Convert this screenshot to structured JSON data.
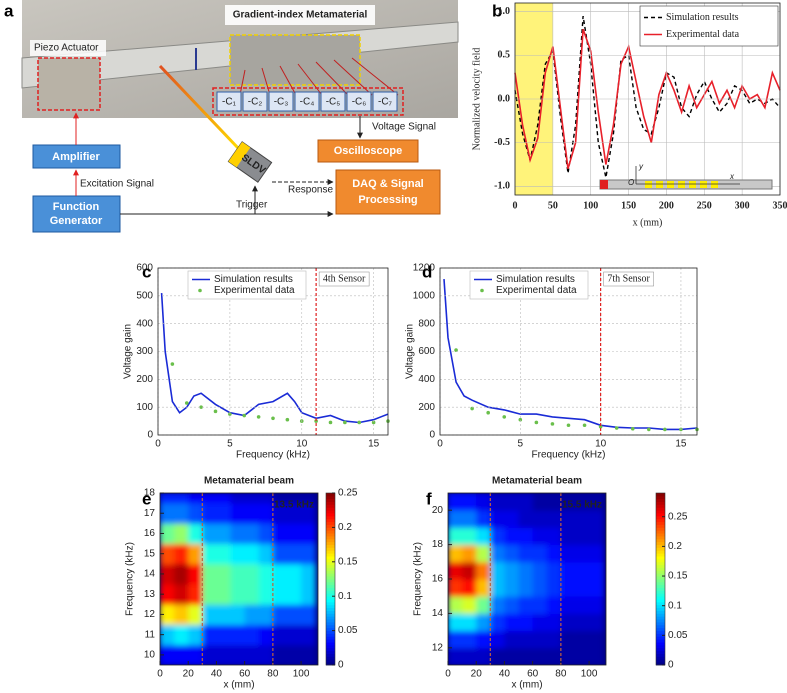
{
  "diagram": {
    "panel": "a",
    "title": "Gradient-index Metamaterial",
    "actuator_label": "Piezo Actuator",
    "sensors": [
      "-C₁",
      "-C₂",
      "-C₃",
      "-C₄",
      "-C₅",
      "-C₆",
      "-C₇"
    ],
    "voltage_signal": "Voltage Signal",
    "oscilloscope": "Oscilloscope",
    "amplifier": "Amplifier",
    "excitation_signal": "Excitation Signal",
    "function_generator": [
      "Function",
      "Generator"
    ],
    "sldv": "SLDV",
    "trigger": "Trigger",
    "response": "Response",
    "daq": [
      "DAQ & Signal",
      "Processing"
    ]
  },
  "chart_data": [
    {
      "panel": "b",
      "type": "line",
      "xlabel": "x (mm)",
      "ylabel": "Normalized velocity field",
      "x": [
        0,
        10,
        20,
        30,
        40,
        50,
        60,
        70,
        80,
        90,
        100,
        110,
        120,
        130,
        140,
        150,
        160,
        170,
        180,
        190,
        200,
        210,
        220,
        230,
        240,
        250,
        260,
        270,
        280,
        290,
        300,
        310,
        320,
        330,
        340,
        350
      ],
      "series": [
        {
          "name": "Simulation results",
          "color": "#000000",
          "dash": true,
          "mode": "line",
          "values": [
            0.1,
            -0.4,
            -0.7,
            -0.3,
            0.4,
            0.55,
            -0.2,
            -0.85,
            -0.3,
            0.95,
            0.4,
            -0.5,
            -0.9,
            -0.4,
            0.45,
            0.5,
            -0.1,
            -0.35,
            -0.4,
            -0.1,
            0.3,
            0.25,
            -0.1,
            -0.2,
            0.05,
            0.2,
            0,
            -0.15,
            -0.05,
            0.15,
            0.1,
            -0.05,
            0,
            -0.05,
            0,
            -0.1
          ]
        },
        {
          "name": "Experimental data",
          "color": "#e8202a",
          "mode": "line",
          "values": [
            0.3,
            -0.3,
            -0.7,
            -0.45,
            0.3,
            0.6,
            -0.1,
            -0.8,
            -0.5,
            0.8,
            0.55,
            -0.15,
            -0.75,
            -0.3,
            0.4,
            0.6,
            0.2,
            -0.2,
            -0.5,
            0.05,
            0.3,
            0.1,
            -0.15,
            0.15,
            -0.1,
            0.05,
            0.2,
            -0.05,
            0.1,
            -0.1,
            0.15,
            0,
            0.05,
            -0.1,
            0.3,
            0.1
          ]
        }
      ],
      "xlim": [
        0,
        350
      ],
      "xticks": [
        0,
        50,
        100,
        150,
        200,
        250,
        300,
        350
      ],
      "ylim": [
        -1.1,
        1.1
      ],
      "yticks": [
        {
          "value": -1,
          "label": "-1.0"
        },
        -0.5,
        {
          "value": 0,
          "label": "0.0"
        },
        0.5,
        {
          "value": 1,
          "label": "1.0"
        }
      ],
      "grid": true,
      "legend": "upper right",
      "shade_x": [
        0,
        50
      ],
      "shade_color": "#fff37a",
      "inset_labels": [
        "y",
        "O",
        "x"
      ]
    },
    {
      "panel": "c",
      "type": "line",
      "xlabel": "Frequency (kHz)",
      "ylabel": "Voltage gain",
      "series": [
        {
          "name": "Simulation results",
          "color": "#1a2bd6",
          "mode": "line",
          "x": [
            0.25,
            0.5,
            1,
            1.5,
            2,
            2.5,
            3,
            4,
            5,
            6,
            7,
            8,
            9,
            9.5,
            10,
            11,
            12,
            13,
            14,
            15,
            16
          ],
          "values": [
            510,
            300,
            120,
            80,
            100,
            140,
            150,
            110,
            80,
            70,
            110,
            120,
            150,
            120,
            80,
            60,
            70,
            50,
            45,
            55,
            75
          ]
        },
        {
          "name": "Experimental data",
          "color": "#6abf4b",
          "mode": "markers",
          "x": [
            1,
            2,
            3,
            4,
            5,
            6,
            7,
            8,
            9,
            10,
            11,
            12,
            13,
            14,
            15,
            16
          ],
          "values": [
            255,
            115,
            100,
            85,
            75,
            70,
            65,
            60,
            55,
            50,
            50,
            45,
            45,
            45,
            45,
            50
          ]
        }
      ],
      "xlim": [
        0,
        16
      ],
      "xticks": [
        0,
        5,
        10,
        15
      ],
      "ylim": [
        0,
        600
      ],
      "yticks": [
        0,
        100,
        200,
        300,
        400,
        500,
        600
      ],
      "grid": true,
      "legend": "upper left",
      "vlines": [
        {
          "x": 11,
          "label": "4th Sensor",
          "color": "#e02020"
        }
      ]
    },
    {
      "panel": "d",
      "type": "line",
      "xlabel": "Frequency (kHz)",
      "ylabel": "Voltage gain",
      "series": [
        {
          "name": "Simulation results",
          "color": "#1a2bd6",
          "mode": "line",
          "x": [
            0.25,
            0.5,
            1,
            1.5,
            2,
            3,
            4,
            5,
            6,
            7,
            8,
            9,
            10,
            11,
            12,
            13,
            14,
            15,
            16
          ],
          "values": [
            1120,
            700,
            380,
            280,
            250,
            200,
            180,
            150,
            150,
            130,
            120,
            110,
            70,
            55,
            50,
            50,
            40,
            40,
            50
          ]
        },
        {
          "name": "Experimental data",
          "color": "#6abf4b",
          "mode": "markers",
          "x": [
            1,
            2,
            3,
            4,
            5,
            6,
            7,
            8,
            9,
            10,
            11,
            12,
            13,
            14,
            15,
            16
          ],
          "values": [
            610,
            190,
            160,
            130,
            110,
            90,
            80,
            70,
            70,
            60,
            50,
            45,
            40,
            40,
            40,
            40
          ]
        }
      ],
      "xlim": [
        0,
        16
      ],
      "xticks": [
        0,
        5,
        10,
        15
      ],
      "ylim": [
        0,
        1200
      ],
      "yticks": [
        0,
        200,
        400,
        600,
        800,
        1000,
        1200
      ],
      "grid": true,
      "legend": "upper left",
      "vlines": [
        {
          "x": 10,
          "label": "7th Sensor",
          "color": "#e02020"
        }
      ]
    },
    {
      "panel": "e",
      "type": "heatmap",
      "title": "Metamaterial beam",
      "annotation": "13.5 kHz",
      "xlabel": "x (mm)",
      "ylabel": "Frequency (kHz)",
      "colormap": "jet",
      "x_bins": [
        0,
        10,
        20,
        30,
        40,
        50,
        60,
        70,
        80,
        90,
        100,
        110
      ],
      "y_bins": [
        9.5,
        10.5,
        11.5,
        12.5,
        13.5,
        14.5,
        15.5,
        16.5,
        17.5,
        18
      ],
      "z": [
        [
          0.03,
          0.03,
          0.03,
          0.02,
          0.02,
          0.02,
          0.02,
          0.02,
          0.01,
          0.01,
          0.01
        ],
        [
          0.08,
          0.09,
          0.08,
          0.04,
          0.04,
          0.04,
          0.04,
          0.03,
          0.02,
          0.02,
          0.02
        ],
        [
          0.16,
          0.17,
          0.15,
          0.08,
          0.08,
          0.08,
          0.07,
          0.07,
          0.05,
          0.05,
          0.05
        ],
        [
          0.22,
          0.23,
          0.21,
          0.12,
          0.12,
          0.11,
          0.11,
          0.1,
          0.09,
          0.09,
          0.08
        ],
        [
          0.23,
          0.24,
          0.22,
          0.12,
          0.12,
          0.11,
          0.11,
          0.1,
          0.09,
          0.09,
          0.08
        ],
        [
          0.2,
          0.21,
          0.18,
          0.1,
          0.1,
          0.09,
          0.09,
          0.08,
          0.05,
          0.05,
          0.05
        ],
        [
          0.12,
          0.13,
          0.1,
          0.07,
          0.07,
          0.06,
          0.06,
          0.05,
          0.03,
          0.03,
          0.03
        ],
        [
          0.06,
          0.06,
          0.05,
          0.04,
          0.04,
          0.03,
          0.03,
          0.03,
          0.02,
          0.02,
          0.02
        ],
        [
          0.04,
          0.04,
          0.03,
          0.03,
          0.03,
          0.02,
          0.02,
          0.02,
          0.01,
          0.01,
          0.01
        ]
      ],
      "xlim": [
        0,
        112
      ],
      "xticks": [
        0,
        20,
        40,
        60,
        80,
        100
      ],
      "ylim": [
        9.5,
        18
      ],
      "yticks": [
        10,
        11,
        12,
        13,
        14,
        15,
        16,
        17,
        18
      ],
      "clim": [
        0,
        0.25
      ],
      "cticks": [
        0,
        0.05,
        0.1,
        0.15,
        0.2,
        0.25
      ],
      "vlines": [
        {
          "x": 30,
          "color": "#c0623a"
        },
        {
          "x": 80,
          "color": "#c0623a"
        }
      ]
    },
    {
      "panel": "f",
      "type": "heatmap",
      "title": "Metamaterial beam",
      "annotation": "15.5 kHz",
      "xlabel": "x (mm)",
      "ylabel": "Frequency (kHz)",
      "colormap": "jet",
      "x_bins": [
        0,
        10,
        20,
        30,
        40,
        50,
        60,
        70,
        80,
        90,
        100,
        110
      ],
      "y_bins": [
        11,
        12,
        13,
        14,
        15,
        16,
        17,
        18,
        19,
        20,
        21
      ],
      "z": [
        [
          0.02,
          0.02,
          0.02,
          0.01,
          0.01,
          0.01,
          0.01,
          0.01,
          0.01,
          0.01,
          0.01
        ],
        [
          0.05,
          0.05,
          0.04,
          0.03,
          0.02,
          0.02,
          0.02,
          0.02,
          0.01,
          0.01,
          0.01
        ],
        [
          0.1,
          0.1,
          0.08,
          0.05,
          0.04,
          0.04,
          0.03,
          0.03,
          0.02,
          0.02,
          0.02
        ],
        [
          0.16,
          0.17,
          0.14,
          0.07,
          0.06,
          0.05,
          0.05,
          0.04,
          0.03,
          0.03,
          0.03
        ],
        [
          0.24,
          0.25,
          0.2,
          0.09,
          0.08,
          0.07,
          0.06,
          0.05,
          0.04,
          0.04,
          0.04
        ],
        [
          0.26,
          0.27,
          0.22,
          0.09,
          0.08,
          0.07,
          0.06,
          0.05,
          0.04,
          0.04,
          0.04
        ],
        [
          0.2,
          0.21,
          0.16,
          0.07,
          0.06,
          0.05,
          0.05,
          0.04,
          0.03,
          0.03,
          0.03
        ],
        [
          0.12,
          0.12,
          0.1,
          0.05,
          0.04,
          0.04,
          0.03,
          0.03,
          0.02,
          0.02,
          0.02
        ],
        [
          0.07,
          0.07,
          0.05,
          0.03,
          0.03,
          0.02,
          0.02,
          0.02,
          0.02,
          0.02,
          0.02
        ],
        [
          0.04,
          0.04,
          0.03,
          0.02,
          0.02,
          0.02,
          0.01,
          0.01,
          0.01,
          0.01,
          0.01
        ]
      ],
      "xlim": [
        0,
        112
      ],
      "xticks": [
        0,
        20,
        40,
        60,
        80,
        100
      ],
      "ylim": [
        11,
        21
      ],
      "yticks": [
        12,
        14,
        16,
        18,
        20
      ],
      "clim": [
        0,
        0.29
      ],
      "cticks": [
        0,
        0.05,
        0.1,
        0.15,
        0.2,
        0.25
      ],
      "vlines": [
        {
          "x": 30,
          "color": "#c0623a"
        },
        {
          "x": 80,
          "color": "#c0623a"
        }
      ]
    }
  ]
}
